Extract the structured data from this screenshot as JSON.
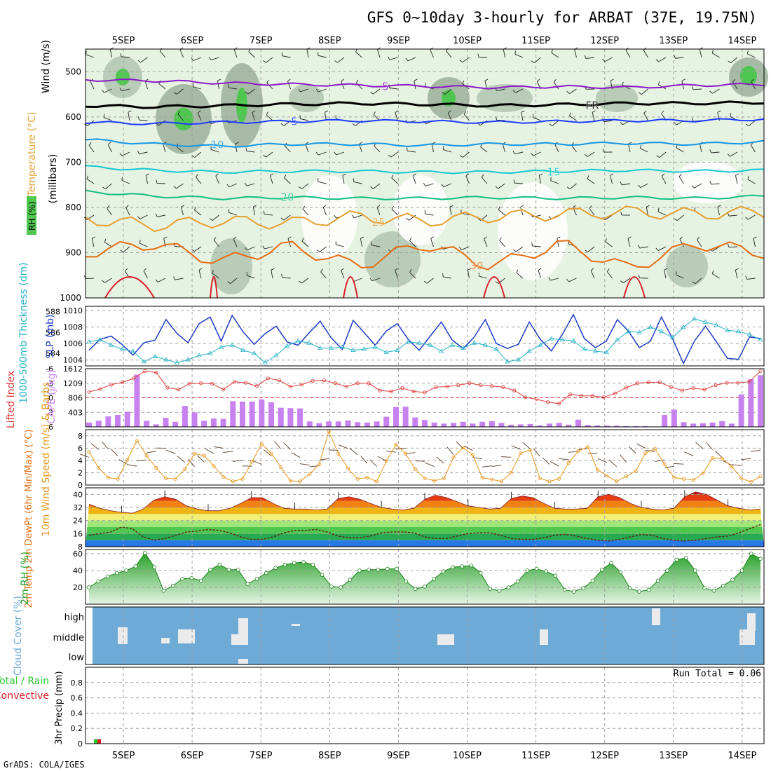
{
  "title": "GFS 0~10day 3-hourly for ARBAT (37E, 19.75N)",
  "credit": "GrADS: COLA/IGES",
  "dates": [
    "5SEP",
    "6SEP",
    "7SEP",
    "8SEP",
    "9SEP",
    "10SEP",
    "11SEP",
    "12SEP",
    "13SEP",
    "14SEP"
  ],
  "colors": {
    "grid": "#a0a0a0",
    "purple": "#8c19c8",
    "dark_blue": "#1e3cff",
    "blue": "#1496e6",
    "cyan": "#14c8d2",
    "green_iso": "#14be82",
    "orange": "#e6a032",
    "dark_orange": "#e66e14",
    "red": "#dc1e28",
    "slp": "#1e3cc8",
    "thick": "#28b4c8",
    "li": "#dc3c3c",
    "cape": "#c882f0",
    "speed": "#e6961e",
    "cloud_bg": "#6eaad6",
    "rh_fill": "#50c850"
  },
  "chart_data": [
    {
      "type": "heatmap",
      "panel": "vertical-cross-section",
      "ylabel": "(millibars)",
      "legend_labels": [
        "Wind (m/s)",
        "Temperature (°C)",
        "RH (%)"
      ],
      "y_ticks": [
        500,
        600,
        700,
        800,
        900,
        1000
      ],
      "ylim": [
        1000,
        450
      ],
      "freezing_label": "FR",
      "isotherms": [
        {
          "value": 5,
          "label": "5",
          "levels_mb": [
            518,
            520,
            525,
            528,
            530,
            532,
            535,
            533,
            535,
            530,
            528
          ]
        },
        {
          "value": 0,
          "label": "FR",
          "levels_mb": [
            575,
            578,
            575,
            572,
            570,
            572,
            575,
            573,
            570,
            570,
            568
          ]
        },
        {
          "value": -5,
          "label": "5",
          "levels_mb": [
            612,
            615,
            612,
            610,
            608,
            610,
            612,
            610,
            608,
            608,
            605
          ]
        },
        {
          "value": -10,
          "label": "10",
          "levels_mb": [
            650,
            660,
            665,
            660,
            660,
            663,
            660,
            660,
            658,
            660,
            655
          ]
        },
        {
          "value": -15,
          "label": "15",
          "levels_mb": [
            710,
            718,
            722,
            720,
            720,
            722,
            722,
            720,
            718,
            720,
            718
          ]
        },
        {
          "value": -20,
          "label": "20",
          "levels_mb": [
            765,
            775,
            780,
            778,
            780,
            780,
            778,
            780,
            778,
            780,
            775
          ]
        },
        {
          "value": -25,
          "label": "25",
          "levels_mb": [
            825,
            840,
            830,
            835,
            820,
            830,
            820,
            815,
            810,
            815,
            810
          ]
        },
        {
          "value": -30,
          "label": "30",
          "levels_mb": [
            900,
            880,
            920,
            885,
            930,
            880,
            930,
            880,
            935,
            880,
            900
          ]
        }
      ],
      "rh_contour_labels": [
        "50",
        "10",
        "30"
      ]
    },
    {
      "type": "line",
      "panel": "slp-thickness",
      "ylabel_left": "1000-500mb Thickness (dm)",
      "ylabel_right": "SLP (mb)",
      "left_ticks": [
        584,
        586,
        588
      ],
      "right_ticks": [
        1004,
        1006,
        1008,
        1010
      ],
      "series": [
        {
          "name": "SLP",
          "values": [
            1005.2,
            1006.5,
            1006.9,
            1005.9,
            1004.6,
            1006.1,
            1006.4,
            1008.9,
            1007.2,
            1006.1,
            1008.4,
            1009.2,
            1006.3,
            1009.4,
            1007.4,
            1005.9,
            1007.2,
            1008.1,
            1006.2,
            1005.8,
            1007.3,
            1008.7,
            1006.7,
            1005.3,
            1008.8,
            1007.3,
            1005.8,
            1007.5,
            1008.4,
            1006.5,
            1005.2,
            1006.9,
            1008.6,
            1006.4,
            1005.4,
            1006.8,
            1008.9,
            1006.0,
            1005.4,
            1005.9,
            1008.6,
            1006.5,
            1005.1,
            1007.1,
            1009.5,
            1006.6,
            1005.5,
            1006.3,
            1008.9,
            1007.5,
            1005.5,
            1006.3,
            1009.2,
            1006.6,
            1003.6,
            1006.3,
            1008.1,
            1006.2,
            1004.2,
            1004.1,
            1006.8,
            1006.6
          ]
        },
        {
          "name": "Thickness",
          "values": [
            585.1,
            585.3,
            584.8,
            584.4,
            584.2,
            583.2,
            583.7,
            583.4,
            583.1,
            583.4,
            583.8,
            584.0,
            584.6,
            584.8,
            584.3,
            584.0,
            583.1,
            583.8,
            584.7,
            585.2,
            585.0,
            584.5,
            584.5,
            584.6,
            584.3,
            584.4,
            584.6,
            584.1,
            584.3,
            585.1,
            585.0,
            584.8,
            584.2,
            584.8,
            584.5,
            585.0,
            584.8,
            584.4,
            583.2,
            583.4,
            584.2,
            584.8,
            585.4,
            585.3,
            585.2,
            584.4,
            584.2,
            584.1,
            585.3,
            586.1,
            586.0,
            586.5,
            586.1,
            585.5,
            586.5,
            587.3,
            587.0,
            586.7,
            586.2,
            586.1,
            585.8,
            585.3
          ]
        }
      ]
    },
    {
      "type": "bar",
      "panel": "li-cape",
      "ylabel_left": "Lifted Index",
      "ylabel_right": "CAPE (J/kg)",
      "li_ticks": [
        -6,
        -3,
        0,
        3,
        6
      ],
      "cape_ticks": [
        403,
        806,
        1209,
        1612
      ],
      "series": [
        {
          "name": "Lifted Index",
          "values": [
            -1.2,
            -1.8,
            -2.7,
            -3.2,
            -4.0,
            -5.5,
            -5.2,
            -2.1,
            -1.7,
            -2.9,
            -3.0,
            -2.9,
            -1.7,
            -3.3,
            -3.1,
            -2.4,
            -4.0,
            -3.6,
            -2.3,
            -2.7,
            -3.5,
            -3.6,
            -3.0,
            -2.3,
            -3.0,
            -3.0,
            -1.5,
            -1.3,
            -2.0,
            -1.3,
            -1.1,
            -2.2,
            -2.3,
            -2.6,
            -3.0,
            -2.6,
            -2.4,
            -2.2,
            -1.5,
            -0.1,
            0.3,
            0.9,
            1.2,
            -0.7,
            -0.4,
            -0.4,
            -0.1,
            -0.9,
            -2.1,
            -3.0,
            -3.2,
            -3.2,
            -2.2,
            -1.5,
            -2.0,
            -1.7,
            -2.6,
            -3.1,
            -3.1,
            -3.3,
            -5.5
          ]
        },
        {
          "name": "CAPE",
          "values": [
            120,
            170,
            290,
            330,
            420,
            1450,
            170,
            70,
            250,
            140,
            580,
            400,
            170,
            230,
            220,
            710,
            700,
            700,
            760,
            680,
            530,
            520,
            510,
            150,
            100,
            150,
            150,
            180,
            130,
            120,
            150,
            280,
            550,
            560,
            260,
            190,
            120,
            90,
            110,
            140,
            90,
            140,
            160,
            110,
            60,
            70,
            80,
            40,
            90,
            110,
            60,
            200,
            50,
            40,
            30,
            30,
            20,
            20,
            20,
            10,
            330,
            480,
            130,
            90,
            100,
            120,
            160,
            90,
            900,
            1320,
            1430
          ]
        }
      ]
    },
    {
      "type": "line",
      "panel": "wind-10m",
      "ylabel": "10m Wind Speed (m/s) & Barbs",
      "y_ticks": [
        0,
        2,
        4,
        6,
        8
      ],
      "ylim": [
        0,
        9
      ],
      "series": [
        {
          "name": "Speed",
          "values": [
            5.4,
            2.8,
            1.2,
            1.0,
            4.1,
            7.2,
            4.8,
            2.8,
            1.1,
            1.0,
            2.6,
            5.1,
            4.8,
            3.1,
            1.3,
            0.6,
            1.0,
            3.8,
            6.7,
            5.1,
            2.9,
            0.7,
            0.6,
            1.8,
            3.4,
            8.7,
            5.1,
            2.7,
            1.0,
            1.2,
            0.6,
            3.9,
            6.6,
            5.1,
            2.6,
            1.1,
            0.7,
            1.1,
            4.5,
            6.1,
            4.9,
            1.2,
            0.9,
            0.6,
            2.0,
            5.2,
            5.7,
            1.1,
            0.6,
            1.0,
            3.6,
            5.5,
            6.2,
            2.5,
            1.5,
            0.6,
            1.4,
            2.3,
            5.2,
            5.9,
            3.4,
            1.2,
            1.0,
            0.8,
            1.9,
            4.4,
            4.3,
            3.0,
            1.1,
            0.5,
            1.4
          ]
        }
      ]
    },
    {
      "type": "area",
      "panel": "temp-dewpoint",
      "ylabel": "2m Temp 2m DewPt (6hr Min/Max) (°C)",
      "y_ticks": [
        8,
        16,
        24,
        32,
        40
      ],
      "ylim": [
        8,
        44
      ],
      "series": [
        {
          "name": "2m Temp",
          "values": [
            34.0,
            31.5,
            30.0,
            29.0,
            28.5,
            31.0,
            36.5,
            38.5,
            37.0,
            33.0,
            31.0,
            30.0,
            30.0,
            31.5,
            34.5,
            38.0,
            38.0,
            34.5,
            31.5,
            31.0,
            31.0,
            30.5,
            31.0,
            37.5,
            38.5,
            37.0,
            34.5,
            32.0,
            31.0,
            30.5,
            31.5,
            37.0,
            39.5,
            38.0,
            35.5,
            33.0,
            32.0,
            31.0,
            31.5,
            37.5,
            39.0,
            38.0,
            34.5,
            31.5,
            31.0,
            31.0,
            31.5,
            38.5,
            40.0,
            38.0,
            34.5,
            32.0,
            31.0,
            30.5,
            31.5,
            38.5,
            41.5,
            40.0,
            36.5,
            33.0,
            31.5,
            30.5,
            31.0
          ]
        },
        {
          "name": "2m DewPt",
          "values": [
            15.0,
            16.0,
            17.0,
            20.0,
            19.0,
            14.0,
            12.0,
            13.0,
            15.0,
            17.0,
            17.5,
            18.5,
            18.0,
            16.5,
            14.0,
            12.5,
            12.5,
            14.0,
            16.5,
            18.0,
            18.0,
            18.5,
            17.0,
            14.5,
            13.5,
            13.5,
            14.5,
            16.5,
            17.0,
            17.0,
            16.5,
            14.0,
            13.0,
            13.0,
            14.5,
            16.0,
            16.5,
            16.5,
            15.0,
            13.0,
            12.5,
            12.5,
            13.5,
            15.0,
            15.5,
            14.5,
            13.0,
            12.0,
            11.5,
            12.5,
            14.0,
            15.5,
            15.0,
            13.0,
            12.0,
            11.5,
            12.0,
            13.0,
            14.0,
            14.5,
            16.5,
            19.0,
            21.5
          ]
        }
      ]
    },
    {
      "type": "area",
      "panel": "rh-2m",
      "ylabel": "2m RH (%)",
      "y_ticks": [
        20,
        40,
        60
      ],
      "ylim": [
        0,
        65
      ],
      "series": [
        {
          "name": "2m RH",
          "values": [
            20,
            27,
            33,
            37,
            40,
            45,
            61,
            44,
            16,
            22,
            30,
            31,
            28,
            41,
            47,
            41,
            41,
            24,
            30,
            37,
            43,
            47,
            49,
            50,
            47,
            35,
            21,
            20,
            29,
            40,
            41,
            41,
            42,
            42,
            27,
            18,
            21,
            30,
            39,
            44,
            45,
            46,
            37,
            18,
            16,
            20,
            27,
            40,
            42,
            39,
            34,
            17,
            15,
            19,
            28,
            41,
            49,
            38,
            19,
            15,
            17,
            28,
            40,
            53,
            55,
            40,
            19,
            16,
            22,
            29,
            40,
            60,
            54
          ]
        }
      ]
    },
    {
      "type": "heatmap",
      "panel": "cloud-cover",
      "ylabel": "Cloud Cover (%)",
      "levels": [
        "high",
        "middle",
        "low"
      ],
      "series": [
        {
          "name": "high",
          "values": [
            0,
            0,
            0,
            0,
            0,
            0,
            0,
            0,
            0,
            0,
            0,
            0,
            0,
            0,
            0,
            0,
            0,
            0,
            0,
            0,
            0,
            0,
            0,
            0,
            0,
            0,
            0,
            0,
            0,
            0,
            0,
            0,
            0,
            0,
            0,
            0,
            0,
            0,
            0,
            0,
            0,
            0,
            0,
            0,
            0,
            0,
            0,
            0,
            0,
            0,
            0,
            0,
            0,
            0,
            0,
            0,
            0,
            0,
            0,
            0,
            0,
            0,
            0,
            0,
            0,
            0,
            0,
            0,
            0,
            0,
            0,
            0,
            0,
            0,
            0,
            0,
            0,
            0,
            0,
            0,
            0,
            0,
            0,
            0,
            0,
            0,
            0,
            0,
            0,
            0,
            0,
            0,
            0,
            0,
            0,
            0,
            0,
            0,
            0,
            0,
            0,
            0,
            0,
            0,
            0,
            0,
            0,
            0,
            0,
            0,
            0,
            0,
            0,
            0,
            0,
            0,
            0,
            0,
            0,
            0,
            0,
            0,
            0,
            0,
            0,
            0,
            0,
            0,
            0,
            0,
            0,
            0
          ]
        },
        {
          "name": "middle",
          "values": [
            0,
            0,
            0,
            0,
            0,
            0,
            0,
            0,
            0,
            0
          ]
        },
        {
          "name": "low",
          "values": [
            0,
            0,
            0,
            0,
            0,
            0,
            0,
            0,
            0,
            0
          ]
        }
      ]
    },
    {
      "type": "bar",
      "panel": "precip-3hr",
      "ylabel": "3hr Precip (mm)",
      "ylabel_extra": [
        "Total / Rain",
        "Convective"
      ],
      "y_ticks": [
        0,
        0.2,
        0.4,
        0.6,
        0.8
      ],
      "ylim": [
        0,
        1.0
      ],
      "run_total_label": "Run Total = 0.06",
      "series": [
        {
          "name": "Total / Rain",
          "values": [
            0.06
          ]
        },
        {
          "name": "Convective",
          "values": [
            0.06
          ]
        }
      ]
    }
  ]
}
